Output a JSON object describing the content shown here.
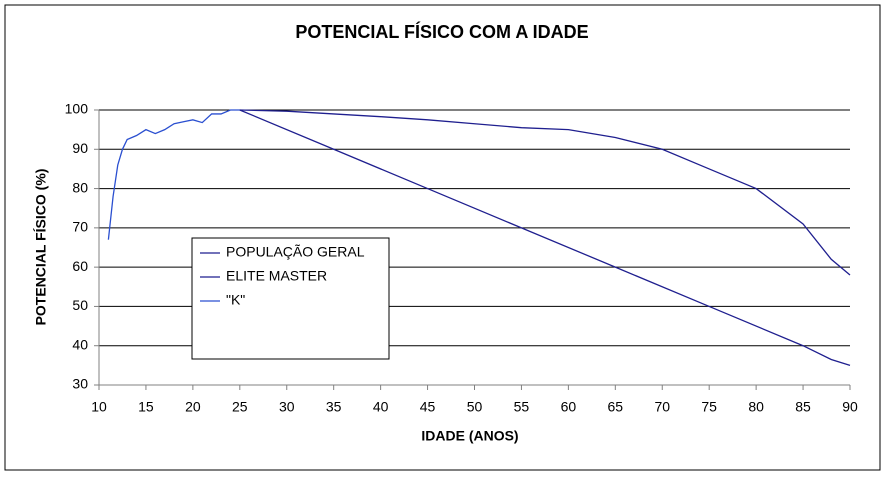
{
  "chart_data": {
    "type": "line",
    "title": "POTENCIAL FÍSICO COM A IDADE",
    "x_label": "IDADE (ANOS)",
    "y_label": "POTENCIAL FÍSICO (%)",
    "xlim": [
      10,
      90
    ],
    "xticks": [
      10,
      15,
      20,
      25,
      30,
      35,
      40,
      45,
      50,
      55,
      60,
      65,
      70,
      75,
      80,
      85,
      90
    ],
    "ylim": [
      30,
      100
    ],
    "yticks": [
      30,
      40,
      50,
      60,
      70,
      80,
      90,
      100
    ],
    "grid": true,
    "legend": "left",
    "series": [
      {
        "name": "POPULAÇÃO GERAL",
        "color": "#1f1f8f",
        "x": [
          25,
          35,
          45,
          55,
          65,
          75,
          85,
          88,
          90
        ],
        "values": [
          100,
          90,
          80,
          70,
          60,
          50,
          40,
          36.5,
          35
        ]
      },
      {
        "name": "ELITE MASTER",
        "color": "#1f1f8f",
        "x": [
          25,
          30,
          35,
          40,
          45,
          50,
          55,
          60,
          65,
          70,
          75,
          80,
          85,
          88,
          90
        ],
        "values": [
          100,
          99.7,
          99,
          98.3,
          97.5,
          96.5,
          95.5,
          95,
          93,
          90,
          85,
          80,
          71,
          62,
          58
        ]
      },
      {
        "name": "\"K\"",
        "color": "#2a4fd0",
        "x": [
          11,
          11.5,
          12,
          12.5,
          13,
          14,
          15,
          16,
          17,
          18,
          19,
          20,
          21,
          22,
          23,
          24,
          25
        ],
        "values": [
          67,
          78,
          86,
          90,
          92.5,
          93.5,
          95,
          94,
          95,
          96.5,
          97,
          97.5,
          96.8,
          99,
          99,
          100,
          100
        ]
      }
    ]
  }
}
